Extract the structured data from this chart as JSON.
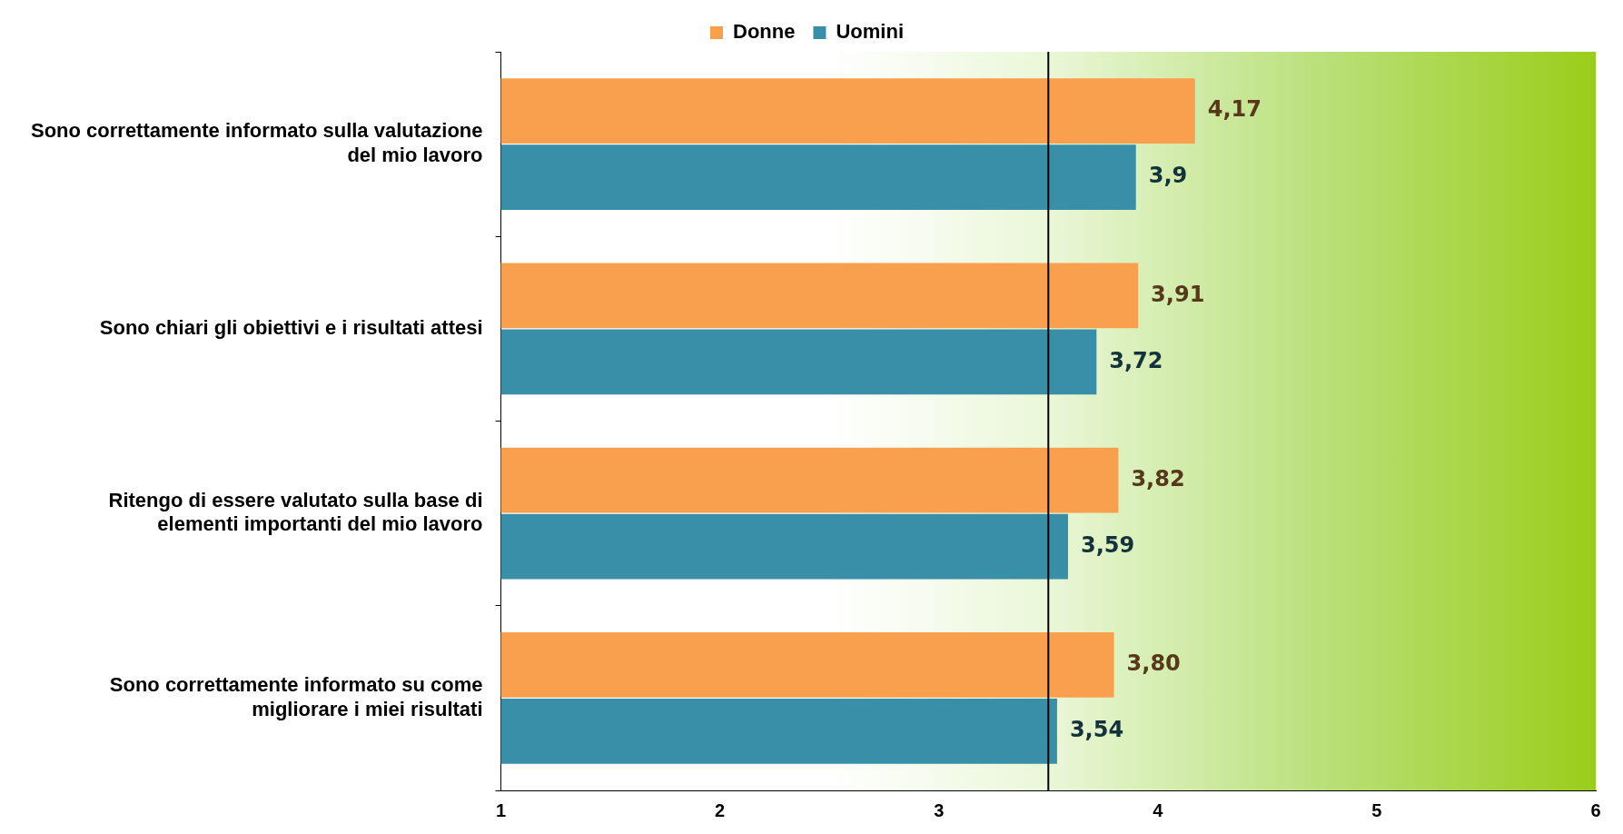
{
  "chart_data": {
    "type": "bar",
    "orientation": "horizontal",
    "legend": "top",
    "categories": [
      "Sono correttamente informato sulla valutazione del mio lavoro",
      "Sono chiari gli obiettivi e i risultati attesi",
      "Ritengo di essere valutato sulla base di elementi importanti del mio lavoro",
      "Sono correttamente informato su come migliorare i miei risultati"
    ],
    "series": [
      {
        "name": "Donne",
        "color": "#f9a04e",
        "values": [
          4.17,
          3.91,
          3.82,
          3.8
        ],
        "value_labels": [
          "4,17",
          "3,91",
          "3,82",
          "3,80"
        ]
      },
      {
        "name": "Uomini",
        "color": "#3a8fa8",
        "values": [
          3.9,
          3.72,
          3.59,
          3.54
        ],
        "value_labels": [
          "3,9",
          "3,72",
          "3,59",
          "3,54"
        ]
      }
    ],
    "xlim": [
      1,
      6
    ],
    "xticks": [
      1,
      2,
      3,
      4,
      5,
      6
    ],
    "grid": false,
    "ref_lines": [
      {
        "axis": "x",
        "value": 3.5,
        "color": "#000000"
      }
    ]
  }
}
